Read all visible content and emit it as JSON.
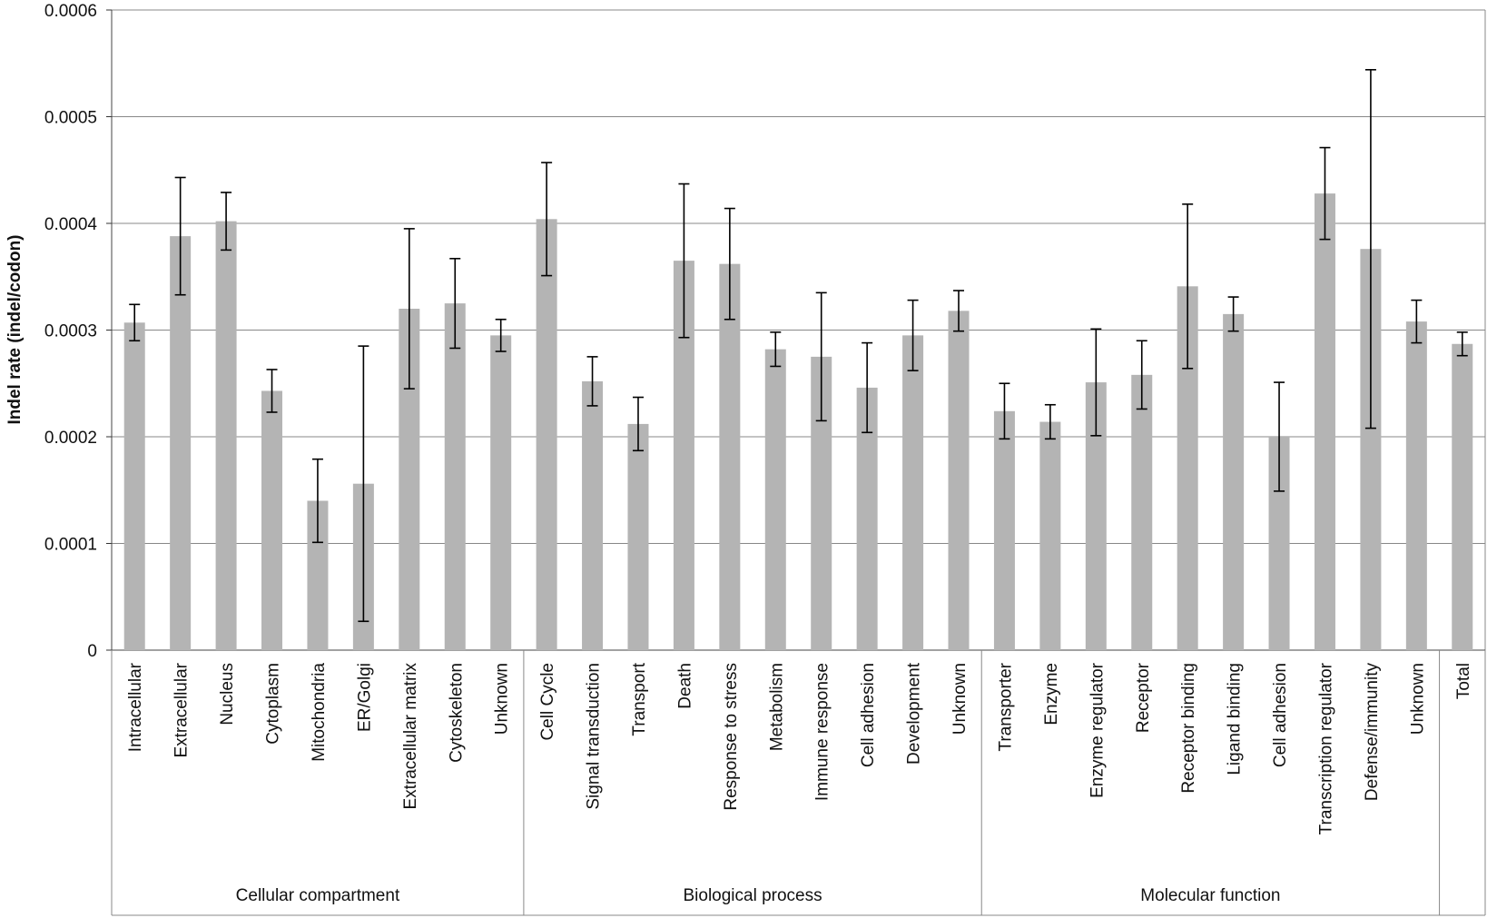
{
  "chart_data": {
    "type": "bar",
    "y_label": "Indel rate (indel/codon)",
    "ylim": [
      0,
      0.0006
    ],
    "yticks": [
      0,
      0.0001,
      0.0002,
      0.0003,
      0.0004,
      0.0005,
      0.0006
    ],
    "grid": true,
    "color": "#b4b4b4",
    "groups": [
      {
        "label": "Cellular compartment",
        "categories": [
          "Intracellular",
          "Extracellular",
          "Nucleus",
          "Cytoplasm",
          "Mitochondria",
          "ER/Golgi",
          "Extracellular matrix",
          "Cytoskeleton",
          "Unknown"
        ],
        "values": [
          0.000307,
          0.000388,
          0.000402,
          0.000243,
          0.00014,
          0.000156,
          0.00032,
          0.000325,
          0.000295
        ],
        "errors": [
          1.7e-05,
          5.5e-05,
          2.7e-05,
          2e-05,
          3.9e-05,
          0.000129,
          7.5e-05,
          4.2e-05,
          1.5e-05
        ]
      },
      {
        "label": "Biological process",
        "categories": [
          "Cell Cycle",
          "Signal transduction",
          "Transport",
          "Death",
          "Response to stress",
          "Metabolism",
          "Immune response",
          "Cell adhesion",
          "Development",
          "Unknown"
        ],
        "values": [
          0.000404,
          0.000252,
          0.000212,
          0.000365,
          0.000362,
          0.000282,
          0.000275,
          0.000246,
          0.000295,
          0.000318
        ],
        "errors": [
          5.3e-05,
          2.3e-05,
          2.5e-05,
          7.2e-05,
          5.2e-05,
          1.6e-05,
          6e-05,
          4.2e-05,
          3.3e-05,
          1.9e-05
        ]
      },
      {
        "label": "Molecular function",
        "categories": [
          "Transporter",
          "Enzyme",
          "Enzyme regulator",
          "Receptor",
          "Receptor binding",
          "Ligand binding",
          "Cell adhesion",
          "Transcription regulator",
          "Defense/immunity",
          "Unknown"
        ],
        "values": [
          0.000224,
          0.000214,
          0.000251,
          0.000258,
          0.000341,
          0.000315,
          0.0002,
          0.000428,
          0.000376,
          0.000308
        ],
        "errors": [
          2.6e-05,
          1.6e-05,
          5e-05,
          3.2e-05,
          7.7e-05,
          1.6e-05,
          5.1e-05,
          4.3e-05,
          0.000168,
          2e-05
        ]
      },
      {
        "label": null,
        "categories": [
          "Total"
        ],
        "values": [
          0.000287
        ],
        "errors": [
          1.1e-05
        ]
      }
    ]
  }
}
